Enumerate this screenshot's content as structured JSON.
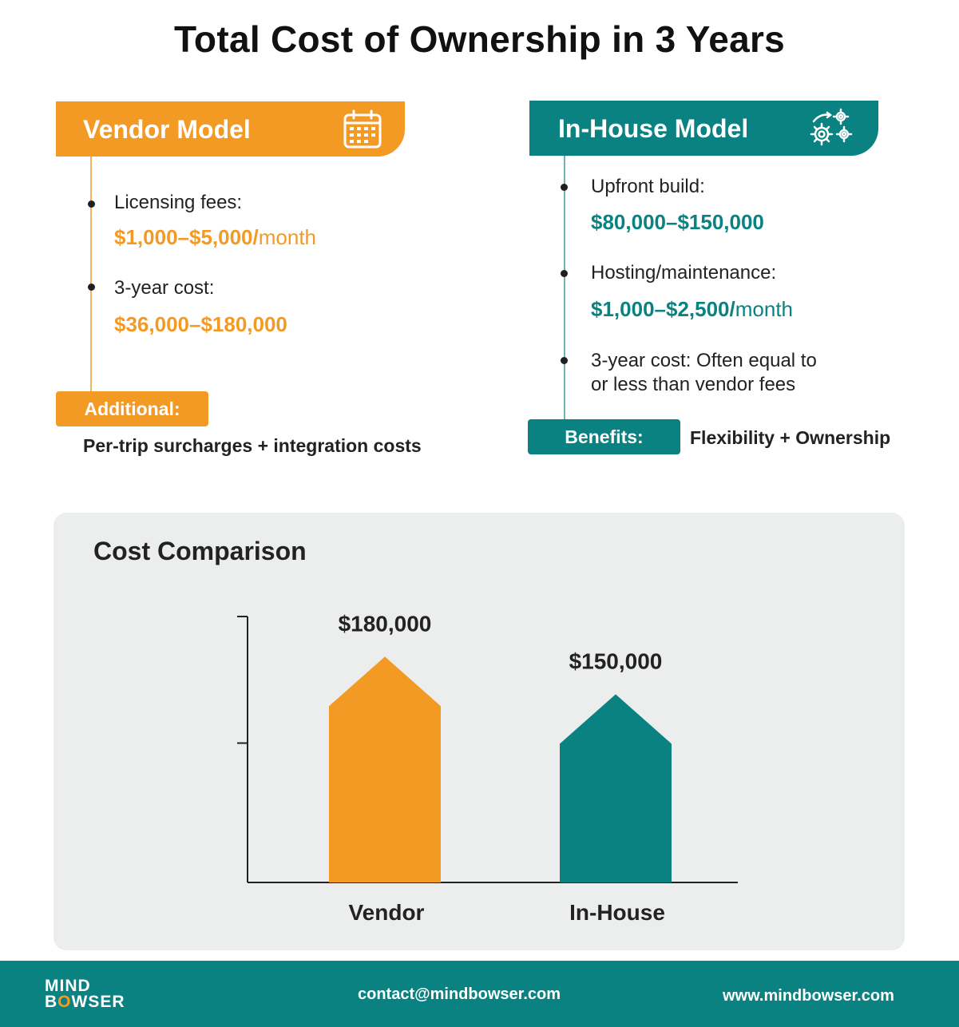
{
  "title": "Total Cost of Ownership in 3 Years",
  "vendor": {
    "header": "Vendor Model",
    "icon": "calendar-icon",
    "items": [
      {
        "label": "Licensing fees:",
        "value": "$1,000–$5,000/",
        "unit": "month"
      },
      {
        "label": "3-year cost:",
        "value": "$36,000–$180,000"
      }
    ],
    "additional_label": "Additional:",
    "additional_text": "Per-trip surcharges + integration costs"
  },
  "inhouse": {
    "header": "In-House Model",
    "icon": "gears-icon",
    "items": [
      {
        "label": "Upfront build:",
        "value": "$80,000–$150,000"
      },
      {
        "label": "Hosting/maintenance:",
        "value": "$1,000–$2,500/",
        "unit": "month"
      },
      {
        "label_line1": "3-year cost: Often equal to",
        "label_line2": "or less than vendor fees"
      }
    ],
    "benefits_label": "Benefits:",
    "benefits_text": "Flexibility + Ownership"
  },
  "chart_data": {
    "type": "bar",
    "title": "Cost Comparison",
    "categories": [
      "Vendor",
      "In-House"
    ],
    "values": [
      180000,
      150000
    ],
    "value_labels": [
      "$180,000",
      "$150,000"
    ],
    "colors": [
      "#f39a25",
      "#0a8282"
    ],
    "ylim": [
      0,
      212000
    ],
    "grid": false
  },
  "colors": {
    "orange": "#f39a25",
    "teal": "#0a8282",
    "card": "#eceeed"
  },
  "footer": {
    "logo_line1": "MIND",
    "logo_line2_a": "B",
    "logo_line2_o": "O",
    "logo_line2_b": "WSER",
    "email": "contact@mindbowser.com",
    "website": "www.mindbowser.com"
  }
}
